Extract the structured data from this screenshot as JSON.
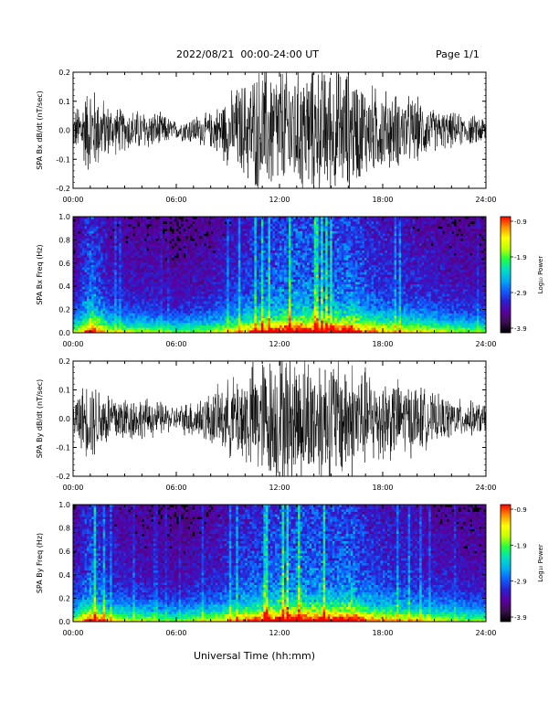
{
  "header": {
    "title": "2022/08/21  00:00-24:00 UT",
    "page": "Page 1/1"
  },
  "x_axis_label": "Universal Time (hh:mm)",
  "colors": {
    "waveform": "#000000",
    "background": "#ffffff",
    "colormap": [
      "#000000",
      "#3a0f4f",
      "#5a00a0",
      "#2a20d0",
      "#1060ff",
      "#00b0f0",
      "#00e0c0",
      "#20ff40",
      "#c0ff00",
      "#ffff00",
      "#ff9000",
      "#ff0000"
    ]
  },
  "chart_data": [
    {
      "type": "line",
      "panel": "bx-waveform",
      "ylabel": "SPA Bx dB/dt (nT/sec)",
      "xlim": [
        "00:00",
        "24:00"
      ],
      "ylim": [
        -0.2,
        0.2
      ],
      "x_ticks": [
        "00:00",
        "06:00",
        "12:00",
        "18:00",
        "24:00"
      ],
      "y_ticks": [
        "0.2",
        "0.1",
        "0.0",
        "-0.1",
        "-0.2"
      ],
      "x_hours": [
        0,
        1,
        2,
        3,
        4,
        5,
        6,
        7,
        8,
        9,
        10,
        11,
        12,
        13,
        14,
        15,
        16,
        17,
        18,
        19,
        20,
        21,
        22,
        23,
        24
      ],
      "envelope_amplitude": [
        0.06,
        0.16,
        0.09,
        0.07,
        0.07,
        0.06,
        0.03,
        0.05,
        0.06,
        0.12,
        0.17,
        0.22,
        0.22,
        0.22,
        0.22,
        0.22,
        0.21,
        0.16,
        0.14,
        0.12,
        0.11,
        0.07,
        0.06,
        0.05,
        0.05
      ]
    },
    {
      "type": "heatmap",
      "panel": "bx-spectrogram",
      "ylabel": "SPA Bx Freq (Hz)",
      "xlim": [
        "00:00",
        "24:00"
      ],
      "ylim": [
        0.0,
        1.0
      ],
      "x_ticks": [
        "00:00",
        "06:00",
        "12:00",
        "18:00",
        "24:00"
      ],
      "y_ticks": [
        "1.0",
        "0.8",
        "0.6",
        "0.4",
        "0.2",
        "0.0"
      ],
      "colorbar_label": "Log₁₀ Power",
      "colorbar_ticks": [
        "-0.9",
        "-1.9",
        "-2.9",
        "-3.9"
      ],
      "colorbar_range": [
        -3.9,
        -0.9
      ],
      "x_hours": [
        0,
        1,
        2,
        3,
        4,
        5,
        6,
        7,
        8,
        9,
        10,
        11,
        12,
        13,
        14,
        15,
        16,
        17,
        18,
        19,
        20,
        21,
        22,
        23,
        24
      ],
      "activity_level": [
        0.3,
        0.9,
        0.45,
        0.35,
        0.35,
        0.3,
        0.2,
        0.3,
        0.35,
        0.5,
        0.65,
        0.8,
        0.9,
        0.95,
        0.9,
        0.85,
        0.95,
        0.7,
        0.6,
        0.55,
        0.5,
        0.4,
        0.35,
        0.3,
        0.3
      ]
    },
    {
      "type": "line",
      "panel": "by-waveform",
      "ylabel": "SPA By dB/dt (nT/sec)",
      "xlim": [
        "00:00",
        "24:00"
      ],
      "ylim": [
        -0.2,
        0.2
      ],
      "x_ticks": [
        "00:00",
        "06:00",
        "12:00",
        "18:00",
        "24:00"
      ],
      "y_ticks": [
        "0.2",
        "0.1",
        "0.0",
        "-0.1",
        "-0.2"
      ],
      "x_hours": [
        0,
        1,
        2,
        3,
        4,
        5,
        6,
        7,
        8,
        9,
        10,
        11,
        12,
        13,
        14,
        15,
        16,
        17,
        18,
        19,
        20,
        21,
        22,
        23,
        24
      ],
      "envelope_amplitude": [
        0.07,
        0.14,
        0.1,
        0.08,
        0.07,
        0.06,
        0.04,
        0.07,
        0.09,
        0.13,
        0.17,
        0.21,
        0.22,
        0.22,
        0.22,
        0.22,
        0.21,
        0.17,
        0.15,
        0.13,
        0.12,
        0.08,
        0.07,
        0.06,
        0.05
      ]
    },
    {
      "type": "heatmap",
      "panel": "by-spectrogram",
      "ylabel": "SPA By Freq (Hz)",
      "xlim": [
        "00:00",
        "24:00"
      ],
      "ylim": [
        0.0,
        1.0
      ],
      "x_ticks": [
        "00:00",
        "06:00",
        "12:00",
        "18:00",
        "24:00"
      ],
      "y_ticks": [
        "1.0",
        "0.8",
        "0.6",
        "0.4",
        "0.2",
        "0.0"
      ],
      "colorbar_label": "Log₁₀ Power",
      "colorbar_ticks": [
        "-0.9",
        "-1.9",
        "-2.9",
        "-3.9"
      ],
      "colorbar_range": [
        -3.9,
        -0.9
      ],
      "x_hours": [
        0,
        1,
        2,
        3,
        4,
        5,
        6,
        7,
        8,
        9,
        10,
        11,
        12,
        13,
        14,
        15,
        16,
        17,
        18,
        19,
        20,
        21,
        22,
        23,
        24
      ],
      "activity_level": [
        0.35,
        0.85,
        0.5,
        0.4,
        0.35,
        0.3,
        0.25,
        0.35,
        0.4,
        0.55,
        0.7,
        0.8,
        0.9,
        0.95,
        0.9,
        0.85,
        0.95,
        0.7,
        0.6,
        0.55,
        0.5,
        0.4,
        0.35,
        0.3,
        0.3
      ]
    }
  ]
}
